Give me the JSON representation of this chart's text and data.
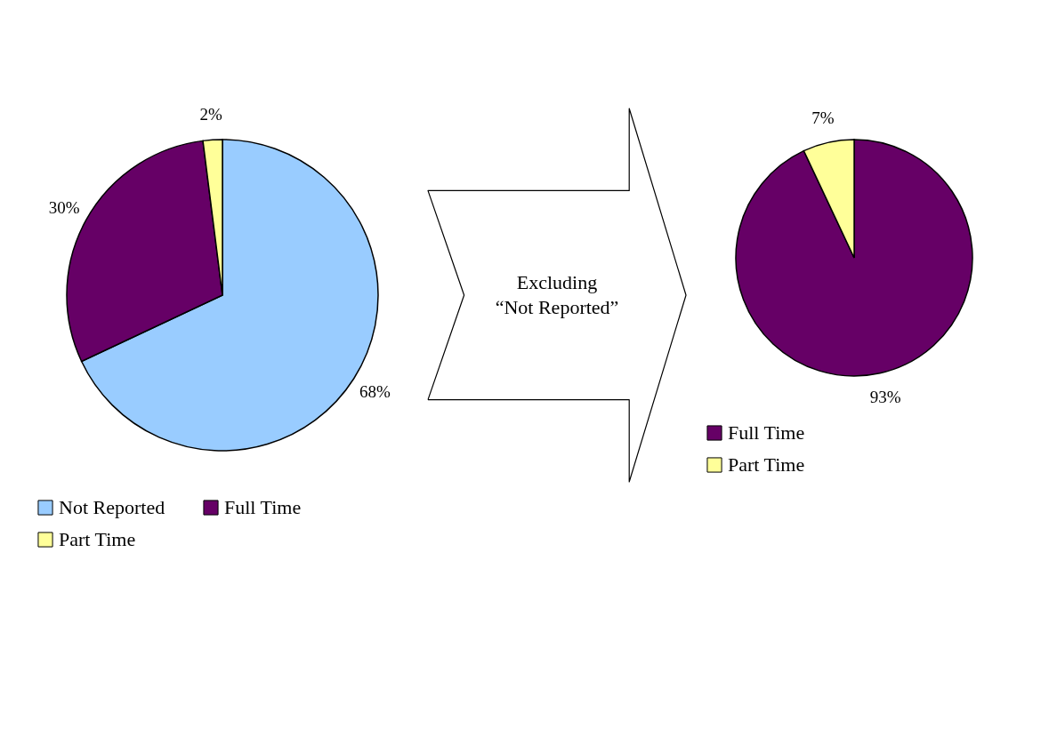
{
  "chart_data": [
    {
      "type": "pie",
      "categories": [
        "Not Reported",
        "Full Time",
        "Part Time"
      ],
      "values": [
        68,
        30,
        2
      ],
      "colors": [
        "#99ccff",
        "#660066",
        "#ffff99"
      ],
      "value_labels": [
        "68%",
        "30%",
        "2%"
      ],
      "legend": "bottom"
    },
    {
      "type": "other",
      "annotations": [
        "Excluding\n“Not Reported”"
      ]
    },
    {
      "type": "pie",
      "categories": [
        "Full Time",
        "Part Time"
      ],
      "values": [
        93,
        7
      ],
      "colors": [
        "#660066",
        "#ffff99"
      ],
      "value_labels": [
        "93%",
        "7%"
      ],
      "legend": "bottom"
    }
  ]
}
